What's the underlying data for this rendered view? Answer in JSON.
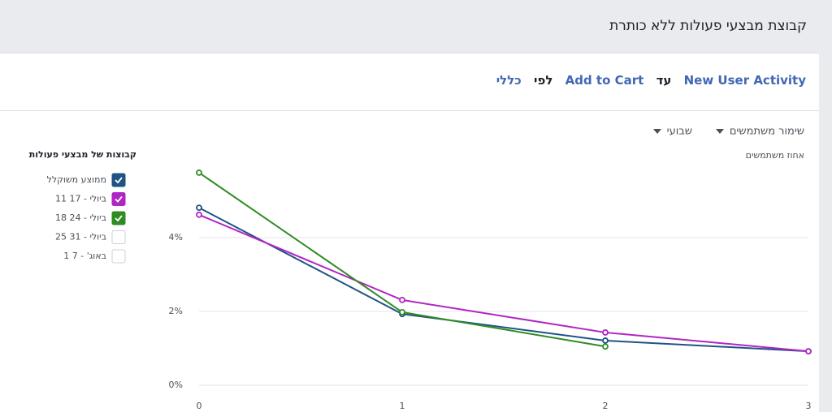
{
  "header": {
    "title": "קבוצת מבצעי פעולות ללא כותרת"
  },
  "query": {
    "first_event": "New User Activity",
    "until": "עד",
    "second_event": "Add to Cart",
    "by": "לפי",
    "breakdown": "כללי"
  },
  "controls": {
    "metric": "שימור משתמשים",
    "period": "שבועי"
  },
  "chart_data": {
    "type": "line",
    "y_label": "אחוז משתמשים",
    "legend_title": "קבוצות של מבצעי פעולות",
    "x": [
      0,
      1,
      2,
      3
    ],
    "xlim": [
      0,
      3
    ],
    "xticks": [
      0,
      1,
      2,
      3
    ],
    "ylim": [
      0,
      6
    ],
    "yticks": [
      {
        "value": 0,
        "label": "0%"
      },
      {
        "value": 2,
        "label": "2%"
      },
      {
        "value": 4,
        "label": "4%"
      }
    ],
    "grid": true,
    "series": [
      {
        "name": "ממוצע משוקלל",
        "color": "#1f5385",
        "checked": true,
        "values": [
          4.81,
          1.93,
          1.21,
          0.92
        ]
      },
      {
        "name": "11 ביולי - 17",
        "color": "#b125c4",
        "checked": true,
        "values": [
          4.62,
          2.31,
          1.43,
          0.92
        ]
      },
      {
        "name": "18 ביולי - 24",
        "color": "#2f8c23",
        "checked": true,
        "values": [
          5.76,
          1.98,
          1.05,
          null
        ]
      },
      {
        "name": "25 ביולי - 31",
        "checked": false,
        "values": [
          null,
          null,
          null,
          null
        ]
      },
      {
        "name": "1 באוג' - 7",
        "checked": false,
        "values": [
          null,
          null,
          null,
          null
        ]
      }
    ]
  }
}
